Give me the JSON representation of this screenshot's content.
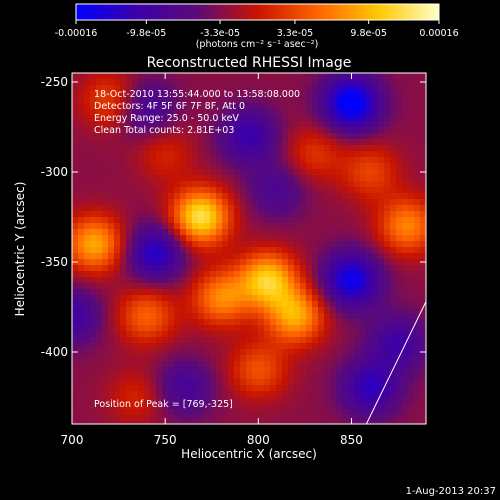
{
  "chart_data": {
    "type": "heatmap",
    "title": "Reconstructed RHESSI Image",
    "xlabel": "Heliocentric X (arcsec)",
    "ylabel": "Heliocentric Y (arcsec)",
    "xlim": [
      700,
      890
    ],
    "ylim": [
      -440,
      -245
    ],
    "x_ticks": [
      "700",
      "750",
      "800",
      "850"
    ],
    "x_tick_values": [
      700,
      750,
      800,
      850
    ],
    "y_ticks": [
      "-250",
      "-300",
      "-350",
      "-400"
    ],
    "y_tick_values": [
      -250,
      -300,
      -350,
      -400
    ],
    "colorbar": {
      "min": -0.00016,
      "max": 0.00016,
      "tick_labels": [
        "-0.00016",
        "-9.8e-05",
        "-3.3e-05",
        "3.3e-05",
        "9.8e-05",
        "0.00016"
      ],
      "tick_values": [
        -0.00016,
        -9.8e-05,
        -3.3e-05,
        3.3e-05,
        9.8e-05,
        0.00016
      ],
      "units_label": "(photons cm⁻² s⁻¹ asec⁻²)",
      "colors": [
        "#0000ff",
        "#3c00a8",
        "#5a0a78",
        "#c81400",
        "#ff6400",
        "#ffc800",
        "#ffffc8"
      ]
    },
    "annotations": [
      "18-Oct-2010 13:55:44.000 to 13:58:08.000",
      "Detectors: 4F 5F 6F 7F 8F, Att 0",
      "Energy Range: 25.0 - 50.0 keV",
      "Clean     Total counts: 2.81E+03"
    ],
    "peak_label": "Position of Peak = [769,-325]",
    "peak": [
      769,
      -325
    ],
    "hot_spots": [
      {
        "x": 769,
        "y": -325,
        "value": 0.00016
      },
      {
        "x": 805,
        "y": -360,
        "value": 0.00014
      },
      {
        "x": 820,
        "y": -380,
        "value": 0.00012
      },
      {
        "x": 712,
        "y": -340,
        "value": 0.00012
      },
      {
        "x": 780,
        "y": -370,
        "value": 0.0001
      },
      {
        "x": 740,
        "y": -380,
        "value": 8e-05
      },
      {
        "x": 880,
        "y": -330,
        "value": 0.0001
      },
      {
        "x": 800,
        "y": -410,
        "value": 7e-05
      },
      {
        "x": 860,
        "y": -300,
        "value": 6e-05
      },
      {
        "x": 720,
        "y": -260,
        "value": 6e-05
      },
      {
        "x": 830,
        "y": -290,
        "value": 5e-05
      },
      {
        "x": 750,
        "y": -290,
        "value": 4e-05
      },
      {
        "x": 735,
        "y": -425,
        "value": 4e-05
      },
      {
        "x": 850,
        "y": -360,
        "value": -0.00012
      },
      {
        "x": 850,
        "y": -262,
        "value": -0.00014
      },
      {
        "x": 745,
        "y": -345,
        "value": -0.0001
      },
      {
        "x": 795,
        "y": -280,
        "value": -8e-05
      },
      {
        "x": 740,
        "y": -265,
        "value": -6e-05
      },
      {
        "x": 700,
        "y": -380,
        "value": -7e-05
      },
      {
        "x": 860,
        "y": -420,
        "value": -9e-05
      },
      {
        "x": 760,
        "y": -420,
        "value": -6e-05
      },
      {
        "x": 810,
        "y": -310,
        "value": -5e-05
      },
      {
        "x": 875,
        "y": -395,
        "value": -7e-05
      }
    ],
    "limb_line": [
      [
        858,
        -440
      ],
      [
        890,
        -372
      ]
    ],
    "grid": false
  },
  "footer": {
    "date": "1-Aug-2013 20:37"
  }
}
